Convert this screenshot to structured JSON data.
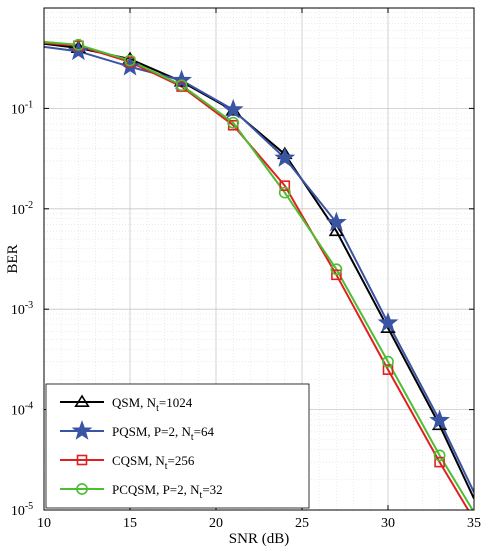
{
  "chart_data": {
    "type": "line",
    "xlabel": "SNR (dB)",
    "ylabel": "BER",
    "xlim": [
      10,
      35
    ],
    "ylim": [
      1e-05,
      1
    ],
    "yscale": "log",
    "grid": true,
    "legend_position": "bottom-left",
    "x_ticks": [
      "10",
      "15",
      "20",
      "25",
      "30",
      "35"
    ],
    "y_ticks": [
      {
        "value": 0.1,
        "base": "10",
        "exp": "-1"
      },
      {
        "value": 0.01,
        "base": "10",
        "exp": "-2"
      },
      {
        "value": 0.001,
        "base": "10",
        "exp": "-3"
      },
      {
        "value": 0.0001,
        "base": "10",
        "exp": "-4"
      },
      {
        "value": 1e-05,
        "base": "10",
        "exp": "-5"
      }
    ],
    "series": [
      {
        "name": "QSM, N",
        "name_sub": "t",
        "name_suffix": "=1024",
        "color": "#000000",
        "marker": "triangle",
        "x": [
          10,
          12,
          15,
          18,
          21,
          24,
          27,
          30,
          33,
          35
        ],
        "y": [
          0.44,
          0.4,
          0.31,
          0.185,
          0.095,
          0.035,
          0.006,
          0.00065,
          7e-05,
          1.3e-05
        ]
      },
      {
        "name": "PQSM, P=2, N",
        "name_sub": "t",
        "name_suffix": "=64",
        "color": "#3a54a4",
        "marker": "star",
        "x": [
          10,
          12,
          15,
          18,
          21,
          24,
          27,
          30,
          33,
          35
        ],
        "y": [
          0.41,
          0.37,
          0.26,
          0.19,
          0.097,
          0.032,
          0.0073,
          0.00073,
          7.8e-05,
          1.5e-05
        ]
      },
      {
        "name": "CQSM, N",
        "name_sub": "t",
        "name_suffix": "=256",
        "color": "#e02020",
        "marker": "square",
        "x": [
          10,
          12,
          15,
          18,
          21,
          24,
          27,
          30,
          33,
          35
        ],
        "y": [
          0.45,
          0.42,
          0.29,
          0.165,
          0.068,
          0.017,
          0.0022,
          0.00025,
          3e-05,
          8e-06
        ]
      },
      {
        "name": "PCQSM, P=2, N",
        "name_sub": "t",
        "name_suffix": "=32",
        "color": "#4dbd33",
        "marker": "circle",
        "x": [
          10,
          12,
          15,
          18,
          21,
          24,
          27,
          30,
          33,
          35
        ],
        "y": [
          0.46,
          0.43,
          0.3,
          0.17,
          0.072,
          0.0145,
          0.0025,
          0.0003,
          3.5e-05,
          9.5e-06
        ]
      }
    ]
  }
}
